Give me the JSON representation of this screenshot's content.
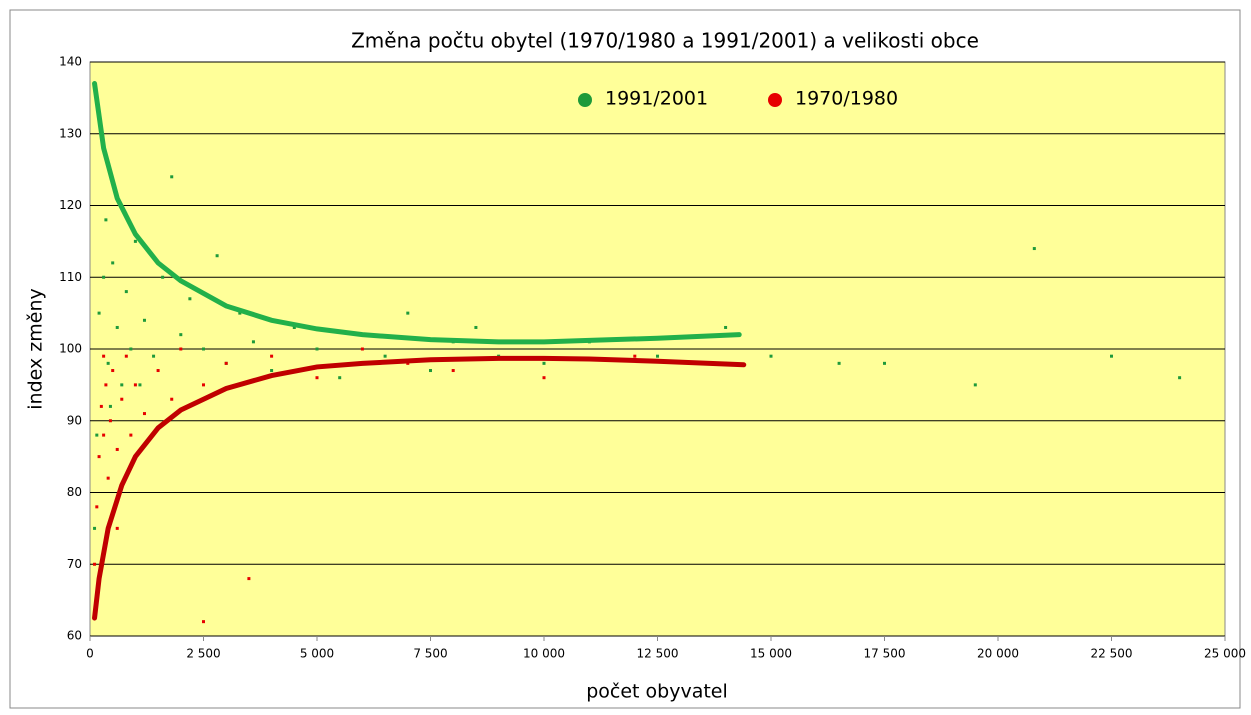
{
  "chart_data": {
    "type": "scatter",
    "title": "Změna počtu obytel (1970/1980 a 1991/2001) a velikosti obce",
    "x_label": "počet obyvatel",
    "y_label": "index  změny",
    "xlim": [
      0,
      25000
    ],
    "ylim": [
      60,
      140
    ],
    "xticks": [
      0,
      {
        "value": 2500,
        "label": "2 500"
      },
      {
        "value": 5000,
        "label": "5 000"
      },
      {
        "value": 7500,
        "label": "7 500"
      },
      {
        "value": 10000,
        "label": "10 000"
      },
      {
        "value": 12500,
        "label": "12 500"
      },
      {
        "value": 15000,
        "label": "15 000"
      },
      {
        "value": 17500,
        "label": "17 500"
      },
      {
        "value": 20000,
        "label": "20 000"
      },
      {
        "value": 22500,
        "label": "22 500"
      },
      {
        "value": 25000,
        "label": "25 000"
      }
    ],
    "yticks": [
      60,
      70,
      80,
      90,
      100,
      110,
      120,
      130,
      140
    ],
    "grid": true,
    "plot_background": "#ffff99",
    "series": [
      {
        "name": "1991/2001",
        "color": "#1e9a3a",
        "x": [
          200,
          300,
          400,
          500,
          600,
          700,
          800,
          900,
          1000,
          1200,
          1400,
          1600,
          1800,
          2000,
          2200,
          2500,
          2800,
          3000,
          3300,
          3600,
          4000,
          4500,
          5000,
          5500,
          6000,
          6500,
          7000,
          7500,
          8000,
          8500,
          9000,
          10000,
          11000,
          12500,
          14000,
          15000,
          16500,
          17500,
          19500,
          20800,
          22500,
          24000,
          250,
          150,
          350,
          1100,
          450,
          100
        ],
        "values": [
          105,
          110,
          98,
          112,
          103,
          95,
          108,
          100,
          115,
          104,
          99,
          110,
          124,
          102,
          107,
          100,
          113,
          98,
          105,
          101,
          97,
          103,
          100,
          96,
          102,
          99,
          105,
          97,
          101,
          103,
          99,
          98,
          101,
          99,
          103,
          99,
          98,
          98,
          95,
          114,
          99,
          96,
          130,
          88,
          118,
          95,
          92,
          75
        ]
      },
      {
        "name": "1970/1980",
        "color": "#e60000",
        "x": [
          100,
          150,
          200,
          250,
          300,
          350,
          400,
          450,
          500,
          600,
          700,
          800,
          900,
          1000,
          1200,
          1500,
          1800,
          2000,
          2500,
          3000,
          3500,
          4000,
          5000,
          6000,
          7000,
          8000,
          9000,
          10000,
          12000,
          14000,
          600,
          300,
          2500
        ],
        "values": [
          70,
          78,
          85,
          92,
          88,
          95,
          82,
          90,
          97,
          86,
          93,
          99,
          88,
          95,
          91,
          97,
          93,
          100,
          95,
          98,
          68,
          99,
          96,
          100,
          98,
          97,
          101,
          96,
          99,
          98,
          75,
          99,
          62
        ]
      },
      {
        "color": "#22b04a",
        "line": true,
        "x": [
          100,
          300,
          600,
          1000,
          1500,
          2000,
          3000,
          4000,
          5000,
          6000,
          7500,
          9000,
          10000,
          11000,
          12500,
          14300
        ],
        "values": [
          137,
          128,
          121,
          116,
          112,
          109.5,
          106,
          104,
          102.8,
          102,
          101.3,
          101,
          101,
          101.2,
          101.5,
          102
        ]
      },
      {
        "color": "#c00000",
        "line": true,
        "x": [
          100,
          200,
          400,
          700,
          1000,
          1500,
          2000,
          3000,
          4000,
          5000,
          6000,
          7500,
          9000,
          10000,
          11000,
          12500,
          14400
        ],
        "values": [
          62.5,
          68,
          75,
          81,
          85,
          89,
          91.5,
          94.5,
          96.3,
          97.5,
          98,
          98.5,
          98.7,
          98.7,
          98.6,
          98.3,
          97.8
        ]
      }
    ]
  }
}
